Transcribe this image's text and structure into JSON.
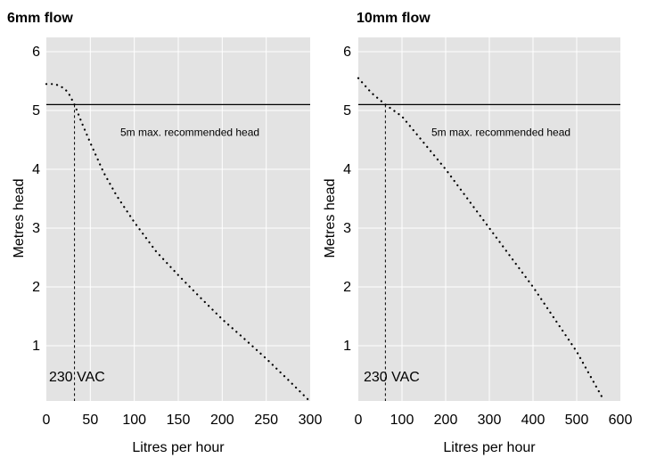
{
  "chart_data": [
    {
      "type": "scatter",
      "title": "6mm flow",
      "xlabel": "Litres per hour",
      "ylabel": "Metres head",
      "xlim": [
        0,
        300
      ],
      "ylim": [
        0,
        6
      ],
      "x_ticks": [
        "0",
        "50",
        "100",
        "150",
        "200",
        "250",
        "300"
      ],
      "y_ticks": [
        "1",
        "2",
        "3",
        "4",
        "5",
        "6"
      ],
      "grid": true,
      "background": "#e3e3e3",
      "max_head_line": {
        "value": 5.1,
        "label": "5m max. recommended head"
      },
      "operating_point": {
        "x": 32,
        "label": "230 VAC"
      },
      "series": [
        {
          "x": [
            0,
            10,
            20,
            25,
            32,
            40,
            50,
            65,
            80,
            100,
            125,
            150,
            175,
            200,
            225,
            250,
            275,
            300
          ],
          "y": [
            5.45,
            5.45,
            5.38,
            5.3,
            5.1,
            4.8,
            4.45,
            3.95,
            3.55,
            3.1,
            2.6,
            2.2,
            1.82,
            1.45,
            1.12,
            0.78,
            0.42,
            0.05
          ]
        }
      ]
    },
    {
      "type": "scatter",
      "title": "10mm flow",
      "xlabel": "Litres per hour",
      "ylabel": "Metres head",
      "xlim": [
        0,
        600
      ],
      "ylim": [
        0,
        6
      ],
      "x_ticks": [
        "0",
        "100",
        "200",
        "300",
        "400",
        "500",
        "600"
      ],
      "y_ticks": [
        "1",
        "2",
        "3",
        "4",
        "5",
        "6"
      ],
      "grid": true,
      "background": "#e3e3e3",
      "max_head_line": {
        "value": 5.1,
        "label": "5m max. recommended head"
      },
      "operating_point": {
        "x": 62,
        "label": "230 VAC"
      },
      "series": [
        {
          "x": [
            0,
            30,
            62,
            100,
            150,
            200,
            250,
            300,
            350,
            400,
            450,
            500,
            530,
            560
          ],
          "y": [
            5.55,
            5.3,
            5.1,
            4.9,
            4.45,
            4.0,
            3.5,
            3.0,
            2.5,
            2.0,
            1.45,
            0.9,
            0.5,
            0.1
          ]
        }
      ]
    }
  ]
}
